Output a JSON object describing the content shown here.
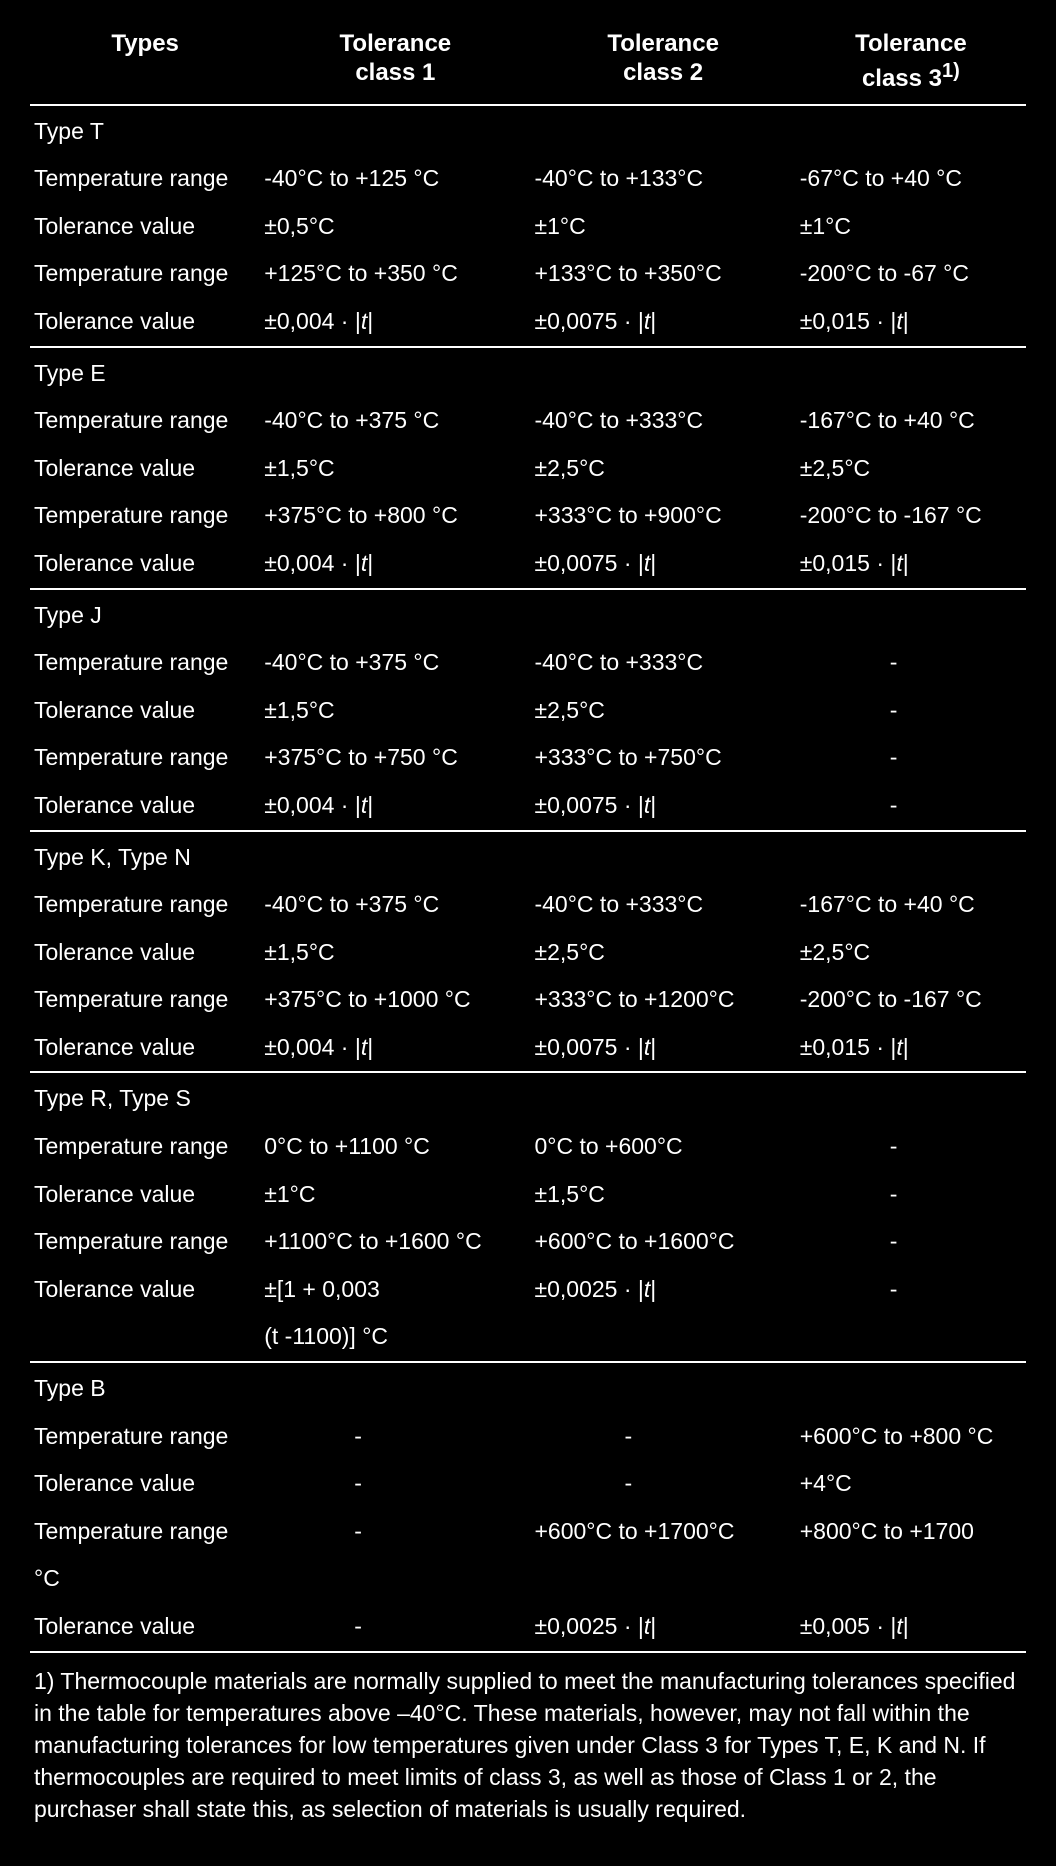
{
  "columns": {
    "types": "Types",
    "c1_l1": "Tolerance",
    "c1_l2": "class 1",
    "c2_l1": "Tolerance",
    "c2_l2": "class 2",
    "c3_l1": "Tolerance",
    "c3_l2_a": "class 3",
    "c3_l2_sup": "1)"
  },
  "labels": {
    "temp_range": "Temperature range",
    "tol_value": "Tolerance value",
    "dash": "-"
  },
  "sections": [
    {
      "title": "Type T",
      "rows": [
        {
          "label": "temp_range",
          "c1": "-40°C to +125 °C",
          "c2": "-40°C to +133°C",
          "c3": "-67°C to +40 °C"
        },
        {
          "label": "tol_value",
          "c1": "±0,5°C",
          "c2": "±1°C",
          "c3": "±1°C"
        },
        {
          "label": "temp_range",
          "c1": "+125°C to +350 °C",
          "c2": "+133°C to +350°C",
          "c3": "-200°C to -67 °C"
        },
        {
          "label": "tol_value",
          "c1": "abs:±0,004 · |t|",
          "c2": "abs:±0,0075 · |t|",
          "c3": "abs:±0,015 · |t|"
        }
      ]
    },
    {
      "title": "Type E",
      "rows": [
        {
          "label": "temp_range",
          "c1": "-40°C to +375 °C",
          "c2": "-40°C to +333°C",
          "c3": "-167°C to +40 °C"
        },
        {
          "label": "tol_value",
          "c1": "±1,5°C",
          "c2": "±2,5°C",
          "c3": "±2,5°C"
        },
        {
          "label": "temp_range",
          "c1": "+375°C to +800 °C",
          "c2": "+333°C to +900°C",
          "c3": "-200°C to -167 °C"
        },
        {
          "label": "tol_value",
          "c1": "abs:±0,004 · |t|",
          "c2": "abs:±0,0075 · |t|",
          "c3": "abs:±0,015 · |t|"
        }
      ]
    },
    {
      "title": "Type J",
      "rows": [
        {
          "label": "temp_range",
          "c1": "-40°C to +375 °C",
          "c2": "-40°C to +333°C",
          "c3": "-"
        },
        {
          "label": "tol_value",
          "c1": "±1,5°C",
          "c2": "±2,5°C",
          "c3": "-"
        },
        {
          "label": "temp_range",
          "c1": "+375°C to +750 °C",
          "c2": "+333°C to +750°C",
          "c3": "-"
        },
        {
          "label": "tol_value",
          "c1": "abs:±0,004 · |t|",
          "c2": "abs:±0,0075 · |t|",
          "c3": "-"
        }
      ]
    },
    {
      "title": "Type K, Type N",
      "rows": [
        {
          "label": "temp_range",
          "c1": "-40°C to +375 °C",
          "c2": "-40°C to +333°C",
          "c3": "-167°C to +40 °C"
        },
        {
          "label": "tol_value",
          "c1": "±1,5°C",
          "c2": "±2,5°C",
          "c3": "±2,5°C"
        },
        {
          "label": "temp_range",
          "c1": "+375°C to +1000 °C",
          "c2": "+333°C to +1200°C",
          "c3": "-200°C to -167 °C"
        },
        {
          "label": "tol_value",
          "c1": "abs:±0,004 · |t|",
          "c2": "abs:±0,0075 · |t|",
          "c3": "abs:±0,015 · |t|"
        }
      ]
    },
    {
      "title": "Type R, Type S",
      "rows": [
        {
          "label": "temp_range",
          "c1": "0°C to +1100 °C",
          "c2": "0°C to +600°C",
          "c3": "-"
        },
        {
          "label": "tol_value",
          "c1": "±1°C",
          "c2": "±1,5°C",
          "c3": "-"
        },
        {
          "label": "temp_range",
          "c1": "+1100°C to +1600 °C",
          "c2": "+600°C to +1600°C",
          "c3": "-"
        },
        {
          "label": "tol_value",
          "c1": "±[1 + 0,003",
          "c2": "abs:±0,0025 · |t|",
          "c3": "-"
        },
        {
          "label": "",
          "c1": "(t -1100)] °C",
          "c2": "",
          "c3": ""
        }
      ]
    },
    {
      "title": "Type B",
      "rows": [
        {
          "label": "temp_range",
          "c1": "-",
          "c2": "-",
          "c3": "+600°C to +800 °C"
        },
        {
          "label": "tol_value",
          "c1": "-",
          "c2": "-",
          "c3": "+4°C"
        },
        {
          "label": "temp_range",
          "c1": "-",
          "c2": "+600°C to +1700°C",
          "c3": "wrap:+800°C to +1700 °C"
        },
        {
          "label": "tol_value",
          "c1": "-",
          "c2": "abs:±0,0025 · |t|",
          "c3": "abs:±0,005 · |t|"
        }
      ]
    }
  ],
  "footnote": "1) Thermocouple materials are normally supplied to meet the manufacturing tolerances specified in the table for temperatures above –40°C. These materials, however, may not fall within the manufacturing tolerances for low temperatures  given under Class 3 for Types T, E, K and N. If thermocouples are required to meet limits of class 3, as well as those of Class 1 or 2, the purchaser shall state this, as selection of materials is usually required."
}
